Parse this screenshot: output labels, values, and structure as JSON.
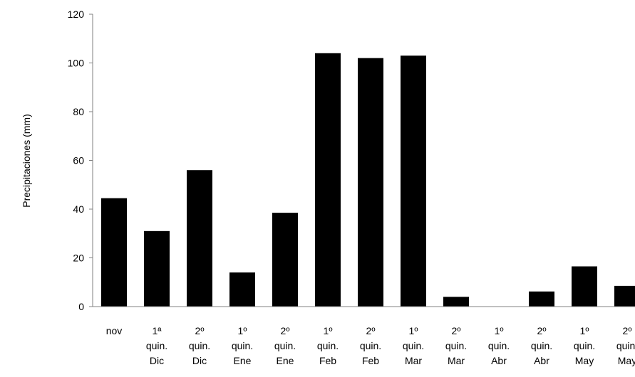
{
  "chart_data": {
    "type": "bar",
    "categories": [
      [
        "nov"
      ],
      [
        "1ª",
        "quin.",
        "Dic"
      ],
      [
        "2º",
        "quin.",
        "Dic"
      ],
      [
        "1º",
        "quin.",
        "Ene"
      ],
      [
        "2º",
        "quin.",
        "Ene"
      ],
      [
        "1º",
        "quin.",
        "Feb"
      ],
      [
        "2º",
        "quin.",
        "Feb"
      ],
      [
        "1º",
        "quin.",
        "Mar"
      ],
      [
        "2º",
        "quin.",
        "Mar"
      ],
      [
        "1º",
        "quin.",
        "Abr"
      ],
      [
        "2º",
        "quin.",
        "Abr"
      ],
      [
        "1º",
        "quin.",
        "May"
      ],
      [
        "2º",
        "quin.",
        "May"
      ]
    ],
    "values": [
      44.5,
      31,
      56,
      14,
      38.5,
      104,
      102,
      103,
      4,
      0,
      6.2,
      16.5,
      8.5
    ],
    "title": "",
    "xlabel": "",
    "ylabel": "Precipitaciones (mm)",
    "ylim": [
      0,
      120
    ],
    "yticks": [
      0,
      20,
      40,
      60,
      80,
      100,
      120
    ],
    "grid": false,
    "legend": "none",
    "bar_color": "#000000"
  }
}
